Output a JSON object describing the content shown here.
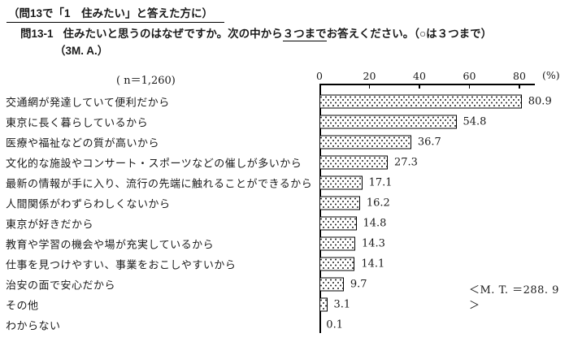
{
  "header": {
    "condition_note": "（問13で「1　住みたい」と答えた方に）",
    "question_no": "問13-1",
    "question_pre": "住みたいと思うのはなぜですか。次の中から",
    "question_underline": "３つまで",
    "question_post": "お答えください。（○は３つまで）",
    "answer_type": "（3M. A.）"
  },
  "chart_data": {
    "type": "bar",
    "orientation": "horizontal",
    "sample_label": "( n＝1,260)",
    "unit_label": "(%)",
    "axis_ticks": [
      0,
      20,
      40,
      60,
      80
    ],
    "xlim": [
      0,
      86
    ],
    "grid": false,
    "categories": [
      "交通網が発達していて便利だから",
      "東京に長く暮らしているから",
      "医療や福祉などの質が高いから",
      "文化的な施設やコンサート・スポーツなどの催しが多いから",
      "最新の情報が手に入り、流行の先端に触れることができるから",
      "人間関係がわずらわしくないから",
      "東京が好きだから",
      "教育や学習の機会や場が充実しているから",
      "仕事を見つけやすい、事業をおこしやすいから",
      "治安の面で安心だから",
      "その他",
      "わからない"
    ],
    "values": [
      80.9,
      54.8,
      36.7,
      27.3,
      17.1,
      16.2,
      14.8,
      14.3,
      14.1,
      9.7,
      3.1,
      0.1
    ],
    "mt_note": "＜M. T. ＝288. 9＞"
  },
  "style": {
    "ink": "#1a1a1a",
    "background": "#ffffff",
    "bar_fill": "#ffffff",
    "bar_border": "#000000",
    "dot_color": "#333333"
  }
}
